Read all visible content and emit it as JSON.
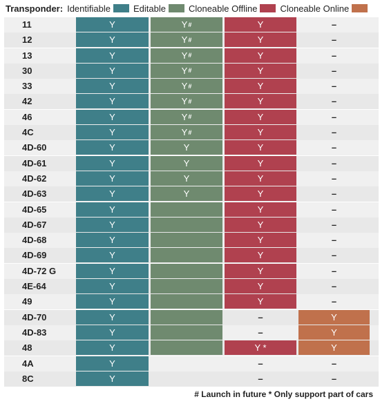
{
  "legend": {
    "title": "Transponder:",
    "items": [
      {
        "label": "Identifiable",
        "color": "#3f7f89"
      },
      {
        "label": "Editable",
        "color": "#6f8a6f"
      },
      {
        "label": "Cloneable Offline",
        "color": "#b0414f"
      },
      {
        "label": "Cloneable Online",
        "color": "#c0714c"
      }
    ]
  },
  "rows": [
    {
      "label": "11",
      "c1": {
        "text": "Y",
        "style": "teal"
      },
      "c2": {
        "text": "Y#",
        "style": "green"
      },
      "c3": {
        "text": "Y",
        "style": "red"
      },
      "c4": {
        "text": "–",
        "style": "empty"
      }
    },
    {
      "label": "12",
      "c1": {
        "text": "Y",
        "style": "teal"
      },
      "c2": {
        "text": "Y#",
        "style": "green"
      },
      "c3": {
        "text": "Y",
        "style": "red"
      },
      "c4": {
        "text": "–",
        "style": "empty"
      }
    },
    {
      "label": "13",
      "c1": {
        "text": "Y",
        "style": "teal"
      },
      "c2": {
        "text": "Y#",
        "style": "green"
      },
      "c3": {
        "text": "Y",
        "style": "red"
      },
      "c4": {
        "text": "–",
        "style": "empty"
      }
    },
    {
      "label": "30",
      "c1": {
        "text": "Y",
        "style": "teal"
      },
      "c2": {
        "text": "Y#",
        "style": "green"
      },
      "c3": {
        "text": "Y",
        "style": "red"
      },
      "c4": {
        "text": "–",
        "style": "empty"
      }
    },
    {
      "label": "33",
      "c1": {
        "text": "Y",
        "style": "teal"
      },
      "c2": {
        "text": "Y#",
        "style": "green"
      },
      "c3": {
        "text": "Y",
        "style": "red"
      },
      "c4": {
        "text": "–",
        "style": "empty"
      }
    },
    {
      "label": "42",
      "c1": {
        "text": "Y",
        "style": "teal"
      },
      "c2": {
        "text": "Y#",
        "style": "green"
      },
      "c3": {
        "text": "Y",
        "style": "red"
      },
      "c4": {
        "text": "–",
        "style": "empty"
      }
    },
    {
      "label": "46",
      "c1": {
        "text": "Y",
        "style": "teal"
      },
      "c2": {
        "text": "Y#",
        "style": "green"
      },
      "c3": {
        "text": "Y",
        "style": "red"
      },
      "c4": {
        "text": "–",
        "style": "empty"
      }
    },
    {
      "label": "4C",
      "c1": {
        "text": "Y",
        "style": "teal"
      },
      "c2": {
        "text": "Y#",
        "style": "green"
      },
      "c3": {
        "text": "Y",
        "style": "red"
      },
      "c4": {
        "text": "–",
        "style": "empty"
      }
    },
    {
      "label": "4D-60",
      "c1": {
        "text": "Y",
        "style": "teal"
      },
      "c2": {
        "text": "Y",
        "style": "green"
      },
      "c3": {
        "text": "Y",
        "style": "red"
      },
      "c4": {
        "text": "–",
        "style": "empty"
      }
    },
    {
      "label": "4D-61",
      "c1": {
        "text": "Y",
        "style": "teal"
      },
      "c2": {
        "text": "Y",
        "style": "green"
      },
      "c3": {
        "text": "Y",
        "style": "red"
      },
      "c4": {
        "text": "–",
        "style": "empty"
      }
    },
    {
      "label": "4D-62",
      "c1": {
        "text": "Y",
        "style": "teal"
      },
      "c2": {
        "text": "Y",
        "style": "green"
      },
      "c3": {
        "text": "Y",
        "style": "red"
      },
      "c4": {
        "text": "–",
        "style": "empty"
      }
    },
    {
      "label": "4D-63",
      "c1": {
        "text": "Y",
        "style": "teal"
      },
      "c2": {
        "text": "Y",
        "style": "green"
      },
      "c3": {
        "text": "Y",
        "style": "red"
      },
      "c4": {
        "text": "–",
        "style": "empty"
      }
    },
    {
      "label": "4D-65",
      "c1": {
        "text": "Y",
        "style": "teal"
      },
      "c2": {
        "text": "",
        "style": "green"
      },
      "c3": {
        "text": "Y",
        "style": "red"
      },
      "c4": {
        "text": "–",
        "style": "empty"
      }
    },
    {
      "label": "4D-67",
      "c1": {
        "text": "Y",
        "style": "teal"
      },
      "c2": {
        "text": "",
        "style": "green"
      },
      "c3": {
        "text": "Y",
        "style": "red"
      },
      "c4": {
        "text": "–",
        "style": "empty"
      }
    },
    {
      "label": "4D-68",
      "c1": {
        "text": "Y",
        "style": "teal"
      },
      "c2": {
        "text": "",
        "style": "green"
      },
      "c3": {
        "text": "Y",
        "style": "red"
      },
      "c4": {
        "text": "–",
        "style": "empty"
      }
    },
    {
      "label": "4D-69",
      "c1": {
        "text": "Y",
        "style": "teal"
      },
      "c2": {
        "text": "",
        "style": "green"
      },
      "c3": {
        "text": "Y",
        "style": "red"
      },
      "c4": {
        "text": "–",
        "style": "empty"
      }
    },
    {
      "label": "4D-72 G",
      "c1": {
        "text": "Y",
        "style": "teal"
      },
      "c2": {
        "text": "",
        "style": "green"
      },
      "c3": {
        "text": "Y",
        "style": "red"
      },
      "c4": {
        "text": "–",
        "style": "empty"
      }
    },
    {
      "label": "4E-64",
      "c1": {
        "text": "Y",
        "style": "teal"
      },
      "c2": {
        "text": "",
        "style": "green"
      },
      "c3": {
        "text": "Y",
        "style": "red"
      },
      "c4": {
        "text": "–",
        "style": "empty"
      }
    },
    {
      "label": "49",
      "c1": {
        "text": "Y",
        "style": "teal"
      },
      "c2": {
        "text": "",
        "style": "green"
      },
      "c3": {
        "text": "Y",
        "style": "red"
      },
      "c4": {
        "text": "–",
        "style": "empty"
      }
    },
    {
      "label": "4D-70",
      "c1": {
        "text": "Y",
        "style": "teal"
      },
      "c2": {
        "text": "",
        "style": "green"
      },
      "c3": {
        "text": "–",
        "style": "empty"
      },
      "c4": {
        "text": "Y",
        "style": "orange"
      }
    },
    {
      "label": "4D-83",
      "c1": {
        "text": "Y",
        "style": "teal"
      },
      "c2": {
        "text": "",
        "style": "green"
      },
      "c3": {
        "text": "–",
        "style": "empty"
      },
      "c4": {
        "text": "Y",
        "style": "orange"
      }
    },
    {
      "label": "48",
      "c1": {
        "text": "Y",
        "style": "teal"
      },
      "c2": {
        "text": "",
        "style": "green"
      },
      "c3": {
        "text": "Y *",
        "style": "red"
      },
      "c4": {
        "text": "Y",
        "style": "orange"
      }
    },
    {
      "label": "4A",
      "c1": {
        "text": "Y",
        "style": "teal"
      },
      "c2": {
        "text": "",
        "style": "empty"
      },
      "c3": {
        "text": "–",
        "style": "empty"
      },
      "c4": {
        "text": "–",
        "style": "empty"
      }
    },
    {
      "label": "8C",
      "c1": {
        "text": "Y",
        "style": "teal"
      },
      "c2": {
        "text": "",
        "style": "empty"
      },
      "c3": {
        "text": "–",
        "style": "empty"
      },
      "c4": {
        "text": "–",
        "style": "empty"
      }
    }
  ],
  "footnote": "# Launch in future   * Only support part of cars"
}
